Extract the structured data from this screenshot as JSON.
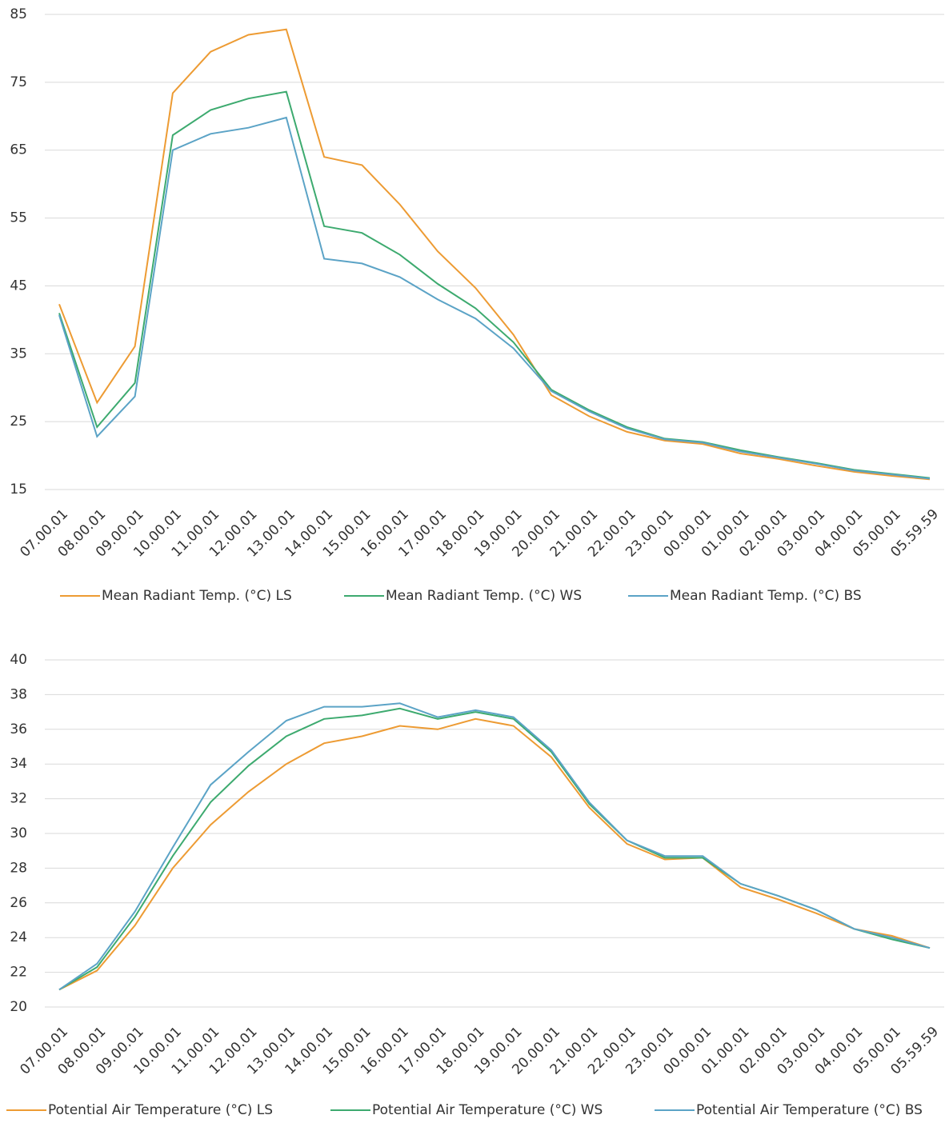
{
  "chart_data": [
    {
      "type": "line",
      "categories": [
        "07.00.01",
        "08.00.01",
        "09.00.01",
        "10.00.01",
        "11.00.01",
        "12.00.01",
        "13.00.01",
        "14.00.01",
        "15.00.01",
        "16.00.01",
        "17.00.01",
        "18.00.01",
        "19.00.01",
        "20.00.01",
        "21.00.01",
        "22.00.01",
        "23.00.01",
        "00.00.01",
        "01.00.01",
        "02.00.01",
        "03.00.01",
        "04.00.01",
        "05.00.01",
        "05.59.59"
      ],
      "series": [
        {
          "name": "Mean Radiant Temp. (°C) LS",
          "color": "#ed9b33",
          "values": [
            42.3,
            27.8,
            36.1,
            73.4,
            79.5,
            82,
            82.8,
            64,
            62.8,
            57,
            50.1,
            44.7,
            37.8,
            28.9,
            25.8,
            23.5,
            22.2,
            21.7,
            20.3,
            19.5,
            18.5,
            17.6,
            17,
            16.5
          ]
        },
        {
          "name": "Mean Radiant Temp. (°C) WS",
          "color": "#3daa6f",
          "values": [
            41,
            24.2,
            30.7,
            67.2,
            70.9,
            72.6,
            73.6,
            53.8,
            52.8,
            49.6,
            45.3,
            41.7,
            36.7,
            29.7,
            26.7,
            24.2,
            22.5,
            22,
            20.8,
            19.8,
            18.9,
            17.9,
            17.3,
            16.7
          ]
        },
        {
          "name": "Mean Radiant Temp. (°C) BS",
          "color": "#5ba3c6",
          "values": [
            40.7,
            22.8,
            28.7,
            65,
            67.4,
            68.3,
            69.8,
            49,
            48.3,
            46.3,
            43,
            40.2,
            35.8,
            29.5,
            26.5,
            24,
            22.4,
            21.9,
            20.6,
            19.7,
            18.8,
            17.8,
            17.2,
            16.6
          ]
        }
      ],
      "ylim": [
        15,
        85
      ],
      "yticks": [
        15,
        25,
        35,
        45,
        55,
        65,
        75,
        85
      ],
      "grid": true,
      "legend": "bottom"
    },
    {
      "type": "line",
      "categories": [
        "07.00.01",
        "08.00.01",
        "09.00.01",
        "10.00.01",
        "11.00.01",
        "12.00.01",
        "13.00.01",
        "14.00.01",
        "15.00.01",
        "16.00.01",
        "17.00.01",
        "18.00.01",
        "19.00.01",
        "20.00.01",
        "21.00.01",
        "22.00.01",
        "23.00.01",
        "00.00.01",
        "01.00.01",
        "02.00.01",
        "03.00.01",
        "04.00.01",
        "05.00.01",
        "05.59.59"
      ],
      "series": [
        {
          "name": "Potential Air Temperature (°C) LS",
          "color": "#ed9b33",
          "values": [
            21,
            22.1,
            24.7,
            28,
            30.5,
            32.4,
            34,
            35.2,
            35.6,
            36.2,
            36,
            36.6,
            36.2,
            34.4,
            31.5,
            29.4,
            28.5,
            28.6,
            26.9,
            26.2,
            25.4,
            24.5,
            24.1,
            23.4
          ]
        },
        {
          "name": "Potential Air Temperature (°C) WS",
          "color": "#3daa6f",
          "values": [
            21,
            22.3,
            25.2,
            28.7,
            31.8,
            33.9,
            35.6,
            36.6,
            36.8,
            37.2,
            36.6,
            37,
            36.6,
            34.7,
            31.7,
            29.6,
            28.6,
            28.6,
            27.1,
            26.4,
            25.6,
            24.5,
            23.9,
            23.4
          ]
        },
        {
          "name": "Potential Air Temperature (°C) BS",
          "color": "#5ba3c6",
          "values": [
            21,
            22.5,
            25.5,
            29.2,
            32.8,
            34.7,
            36.5,
            37.3,
            37.3,
            37.5,
            36.7,
            37.1,
            36.7,
            34.8,
            31.8,
            29.6,
            28.7,
            28.7,
            27.1,
            26.4,
            25.6,
            24.5,
            24,
            23.4
          ]
        }
      ],
      "ylim": [
        20,
        40
      ],
      "yticks": [
        20,
        22,
        24,
        26,
        28,
        30,
        32,
        34,
        36,
        38,
        40
      ],
      "grid": true,
      "legend": "bottom"
    }
  ]
}
